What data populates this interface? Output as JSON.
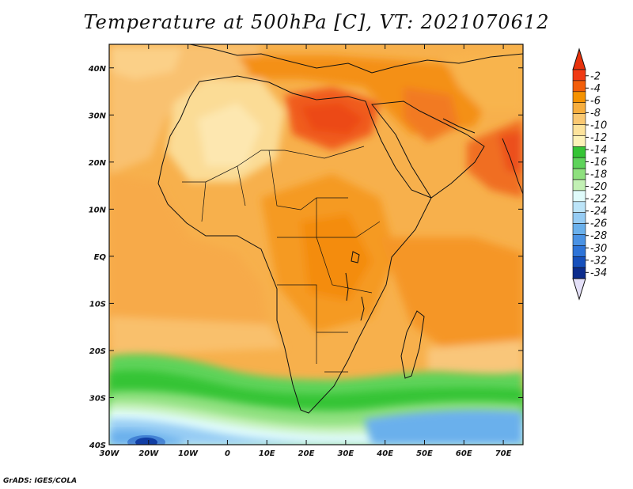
{
  "title": "Temperature at 500hPa [C], VT: 2021070612",
  "credit": "GrADS: IGES/COLA",
  "map": {
    "lon_ticks": [
      "30W",
      "20W",
      "10W",
      "0",
      "10E",
      "20E",
      "30E",
      "40E",
      "50E",
      "60E",
      "70E"
    ],
    "lat_ticks": [
      "40N",
      "30N",
      "20N",
      "10N",
      "EQ",
      "10S",
      "20S",
      "30S",
      "40S"
    ],
    "lon_range": [
      -30,
      75
    ],
    "lat_range": [
      -40,
      45
    ]
  },
  "colorbar": {
    "labels": [
      "-2",
      "-4",
      "-6",
      "-8",
      "-10",
      "-12",
      "-14",
      "-16",
      "-18",
      "-20",
      "-22",
      "-24",
      "-26",
      "-28",
      "-30",
      "-32",
      "-34"
    ],
    "colors": [
      "#f03a14",
      "#f25e0a",
      "#f59200",
      "#f7ae3e",
      "#fac872",
      "#fde39c",
      "#fdf2b8",
      "#35c435",
      "#5ed35a",
      "#8ee07e",
      "#c2f0b4",
      "#e0fbfb",
      "#bce4f8",
      "#96ccf4",
      "#6ab0ec",
      "#4a92e4",
      "#2e74d8",
      "#1650bc",
      "#0c2c8c"
    ],
    "tips": {
      "top": "#e8320c",
      "bottom": "#e4e0f8"
    }
  }
}
